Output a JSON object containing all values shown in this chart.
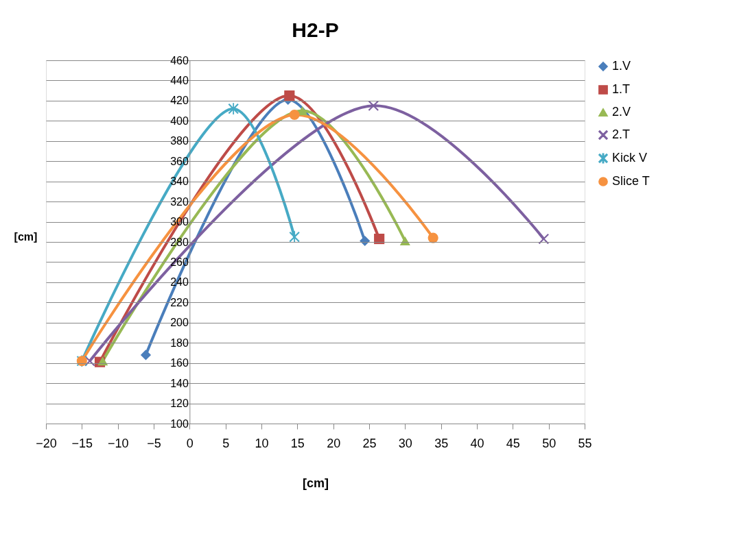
{
  "chart_data": {
    "type": "line",
    "title": "H2-P",
    "xlabel": "[cm]",
    "ylabel": "[cm]",
    "xlim": [
      -20,
      55
    ],
    "xticks": [
      -20,
      -15,
      -10,
      -5,
      0,
      5,
      10,
      15,
      20,
      25,
      30,
      35,
      40,
      45,
      50,
      55
    ],
    "ylim": [
      100,
      460
    ],
    "yticks": [
      100,
      120,
      140,
      160,
      180,
      200,
      220,
      240,
      260,
      280,
      300,
      320,
      340,
      360,
      380,
      400,
      420,
      440,
      460
    ],
    "grid": "y",
    "legend": "right",
    "series": [
      {
        "name": "1.V",
        "color": "#4a7ebb",
        "marker": "diamond",
        "x": [
          -6.1,
          13.7,
          24.4
        ],
        "values": [
          168,
          421,
          281
        ]
      },
      {
        "name": "1.T",
        "color": "#be4b48",
        "marker": "square",
        "x": [
          -12.5,
          13.9,
          26.4
        ],
        "values": [
          161,
          425,
          283
        ]
      },
      {
        "name": "2.V",
        "color": "#98b954",
        "marker": "triangle",
        "x": [
          -12.1,
          15.7,
          30
        ],
        "values": [
          162,
          410,
          281
        ]
      },
      {
        "name": "2.T",
        "color": "#7d60a0",
        "marker": "cross",
        "x": [
          -13.9,
          25.6,
          49.3
        ],
        "values": [
          162,
          415,
          283
        ]
      },
      {
        "name": "Kick V",
        "color": "#46aac5",
        "marker": "star",
        "x": [
          -15,
          6.1,
          14.6
        ],
        "values": [
          162,
          412,
          285
        ]
      },
      {
        "name": "Slice T",
        "color": "#f69240",
        "marker": "circle",
        "x": [
          -15,
          14.6,
          33.9
        ],
        "values": [
          162,
          406,
          284
        ]
      }
    ]
  }
}
